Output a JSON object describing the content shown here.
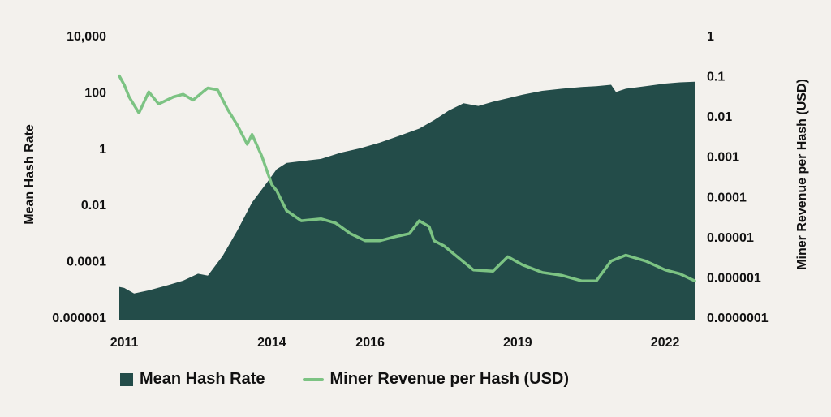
{
  "colors": {
    "background": "#f3f1ed",
    "hash_rate_fill": "#234c49",
    "revenue_line": "#7cc383",
    "text": "#111111"
  },
  "chart_data": {
    "type": "area",
    "scale": "log",
    "x_ticks": [
      "2011",
      "2014",
      "2016",
      "2019",
      "2022"
    ],
    "x_tick_years": [
      2011,
      2014,
      2016,
      2019,
      2022
    ],
    "xlim": [
      2010.9,
      2022.6
    ],
    "y_left": {
      "label": "Mean Hash Rate",
      "ticks": [
        "10,000",
        "100",
        "1",
        "0.01",
        "0.0001",
        "0.000001"
      ],
      "tick_values": [
        10000,
        100,
        1,
        0.01,
        0.0001,
        1e-06
      ],
      "range": [
        1e-06,
        10000
      ]
    },
    "y_right": {
      "label": "Miner Revenue per Hash (USD)",
      "ticks": [
        "1",
        "0.1",
        "0.01",
        "0.001",
        "0.0001",
        "0.00001",
        "0.000001",
        "0.0000001"
      ],
      "tick_values": [
        1,
        0.1,
        0.01,
        0.001,
        0.0001,
        1e-05,
        1e-06,
        1e-07
      ],
      "range": [
        1e-07,
        1
      ]
    },
    "series": [
      {
        "name": "Mean Hash Rate",
        "type": "area",
        "axis": "left",
        "x": [
          2010.9,
          2011.0,
          2011.2,
          2011.5,
          2011.9,
          2012.2,
          2012.5,
          2012.7,
          2013.0,
          2013.3,
          2013.6,
          2013.9,
          2014.1,
          2014.3,
          2014.6,
          2015.0,
          2015.4,
          2015.8,
          2016.2,
          2016.6,
          2017.0,
          2017.3,
          2017.6,
          2017.9,
          2018.2,
          2018.5,
          2018.8,
          2019.1,
          2019.5,
          2019.9,
          2020.3,
          2020.6,
          2020.9,
          2021.0,
          2021.2,
          2021.6,
          2022.0,
          2022.3,
          2022.6
        ],
        "values": [
          1.2e-05,
          1.1e-05,
          7e-06,
          9e-06,
          1.4e-05,
          2e-05,
          3.5e-05,
          3e-05,
          0.00015,
          0.0012,
          0.012,
          0.06,
          0.18,
          0.3,
          0.35,
          0.42,
          0.7,
          1.0,
          1.6,
          2.8,
          5.0,
          10.0,
          22.0,
          40.0,
          32.0,
          45.0,
          60.0,
          80.0,
          110.0,
          130.0,
          150.0,
          160.0,
          180.0,
          100.0,
          130.0,
          160.0,
          200.0,
          220.0,
          230.0
        ]
      },
      {
        "name": "Miner Revenue per Hash (USD)",
        "type": "line",
        "axis": "right",
        "x": [
          2010.9,
          2011.0,
          2011.1,
          2011.3,
          2011.5,
          2011.7,
          2012.0,
          2012.2,
          2012.4,
          2012.6,
          2012.7,
          2012.9,
          2013.1,
          2013.3,
          2013.5,
          2013.6,
          2013.8,
          2014.0,
          2014.1,
          2014.3,
          2014.6,
          2015.0,
          2015.3,
          2015.6,
          2015.9,
          2016.2,
          2016.5,
          2016.8,
          2017.0,
          2017.2,
          2017.3,
          2017.5,
          2017.8,
          2018.1,
          2018.5,
          2018.8,
          2019.1,
          2019.5,
          2019.9,
          2020.3,
          2020.6,
          2020.9,
          2021.2,
          2021.6,
          2022.0,
          2022.3,
          2022.6
        ],
        "values": [
          0.1,
          0.06,
          0.03,
          0.012,
          0.04,
          0.02,
          0.03,
          0.035,
          0.025,
          0.04,
          0.05,
          0.045,
          0.015,
          0.006,
          0.002,
          0.0035,
          0.001,
          0.0002,
          0.00014,
          4.5e-05,
          2.5e-05,
          2.8e-05,
          2.2e-05,
          1.2e-05,
          8e-06,
          8e-06,
          1e-05,
          1.2e-05,
          2.5e-05,
          1.8e-05,
          8e-06,
          6e-06,
          3e-06,
          1.5e-06,
          1.4e-06,
          3.2e-06,
          2e-06,
          1.3e-06,
          1.1e-06,
          8e-07,
          8e-07,
          2.5e-06,
          3.5e-06,
          2.5e-06,
          1.5e-06,
          1.2e-06,
          8e-07
        ]
      }
    ]
  }
}
